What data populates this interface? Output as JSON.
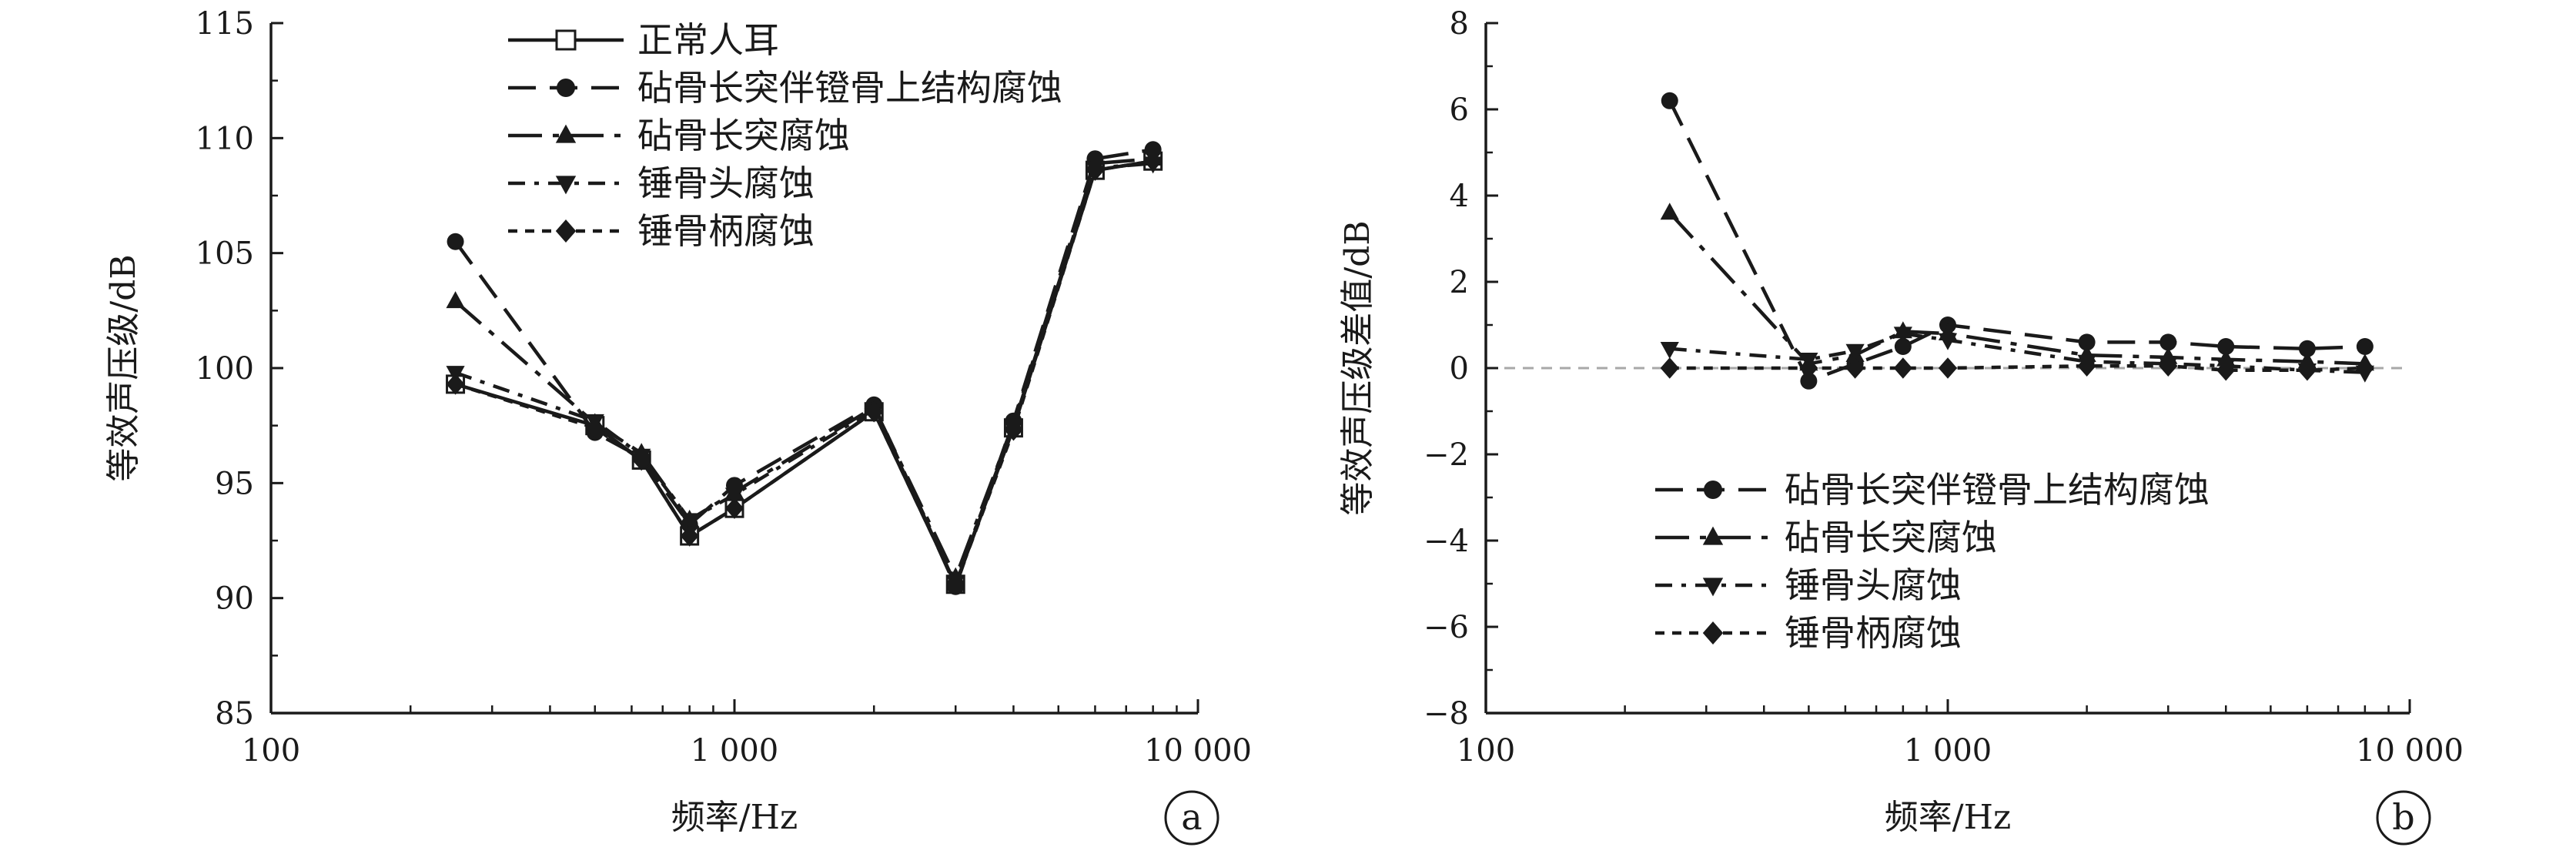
{
  "chart_data": [
    {
      "panel": "a",
      "type": "line",
      "xscale": "log",
      "xlim": [
        100,
        10000
      ],
      "ylim": [
        85,
        115
      ],
      "xlabel": "频率/Hz",
      "ylabel": "等效声压级/dB",
      "x_ticks": [
        "100",
        "1 000",
        "10 000"
      ],
      "y_ticks": [
        "85",
        "90",
        "95",
        "100",
        "105",
        "110",
        "115"
      ],
      "legend_position": "top-center",
      "x": [
        250,
        500,
        630,
        800,
        1000,
        2000,
        3000,
        4000,
        6000,
        8000
      ],
      "series": [
        {
          "name": "正常人耳",
          "marker": "square-open",
          "dash": "solid",
          "values": [
            99.3,
            97.5,
            96.0,
            92.7,
            93.9,
            98.1,
            90.6,
            97.4,
            108.6,
            109.0
          ]
        },
        {
          "name": "砧骨长突伴镫骨上结构腐蚀",
          "marker": "circle",
          "dash": "dash",
          "values": [
            105.5,
            97.2,
            96.1,
            93.2,
            94.9,
            98.4,
            90.5,
            97.7,
            109.1,
            109.5
          ]
        },
        {
          "name": "砧骨长突腐蚀",
          "marker": "triangle-up",
          "dash": "longdash-dot",
          "values": [
            102.9,
            97.6,
            96.3,
            93.4,
            94.6,
            98.3,
            90.9,
            97.6,
            108.9,
            109.1
          ]
        },
        {
          "name": "锤骨头腐蚀",
          "marker": "triangle-down",
          "dash": "dash-dot",
          "values": [
            99.8,
            97.7,
            96.2,
            93.4,
            94.5,
            98.2,
            90.7,
            97.5,
            108.7,
            108.9
          ]
        },
        {
          "name": "锤骨柄腐蚀",
          "marker": "diamond",
          "dash": "short-dash",
          "values": [
            99.3,
            97.4,
            96.0,
            92.7,
            93.9,
            98.1,
            90.6,
            97.3,
            108.6,
            109.0
          ]
        }
      ],
      "tag": "a"
    },
    {
      "panel": "b",
      "type": "line",
      "xscale": "log",
      "xlim": [
        100,
        10000
      ],
      "ylim": [
        -8,
        8
      ],
      "xlabel": "频率/Hz",
      "ylabel": "等效声压级差值/dB",
      "x_ticks": [
        "100",
        "1 000",
        "10 000"
      ],
      "y_ticks": [
        "−8",
        "−6",
        "−4",
        "−2",
        "0",
        "2",
        "4",
        "6",
        "8"
      ],
      "legend_position": "bottom-center",
      "reference_line": 0,
      "x": [
        250,
        500,
        630,
        800,
        1000,
        2000,
        3000,
        4000,
        6000,
        8000
      ],
      "series": [
        {
          "name": "砧骨长突伴镫骨上结构腐蚀",
          "marker": "circle",
          "dash": "dash",
          "values": [
            6.2,
            -0.3,
            0.1,
            0.5,
            1.0,
            0.6,
            0.6,
            0.5,
            0.45,
            0.5
          ]
        },
        {
          "name": "砧骨长突腐蚀",
          "marker": "triangle-up",
          "dash": "longdash-dot",
          "values": [
            3.6,
            0.1,
            0.3,
            0.85,
            0.8,
            0.3,
            0.25,
            0.2,
            0.15,
            0.1
          ]
        },
        {
          "name": "锤骨头腐蚀",
          "marker": "triangle-down",
          "dash": "dash-dot",
          "values": [
            0.45,
            0.2,
            0.4,
            0.8,
            0.65,
            0.15,
            0.1,
            0.05,
            -0.05,
            -0.1
          ]
        },
        {
          "name": "锤骨柄腐蚀",
          "marker": "diamond",
          "dash": "short-dash",
          "values": [
            0.0,
            0.0,
            0.0,
            0.0,
            0.0,
            0.05,
            0.05,
            -0.05,
            -0.05,
            0.0
          ]
        }
      ],
      "tag": "b"
    }
  ]
}
